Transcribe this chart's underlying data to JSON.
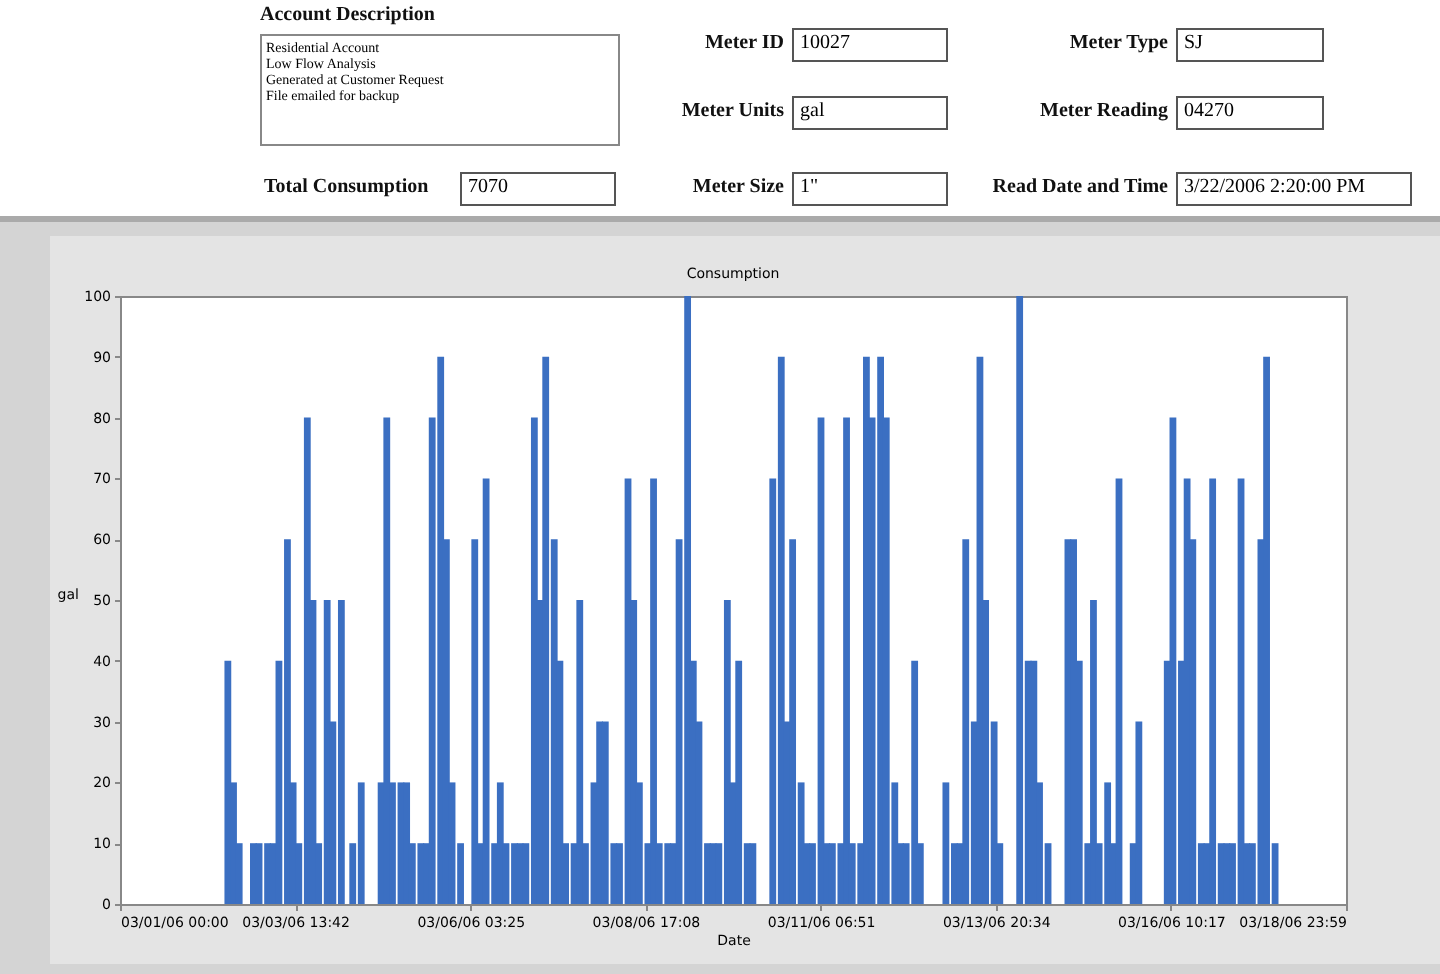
{
  "chart_data": [
    {
      "type": "other",
      "annotations": [
        "Account Description",
        "Residential Account",
        "Low Flow Analysis",
        "Generated at Customer Request",
        "File emailed for backup",
        "Total Consumption",
        "7070",
        "Meter ID",
        "10027",
        "Meter Units",
        "gal",
        "Meter Size",
        "1\"",
        "Meter Type",
        "SJ",
        "Meter Reading",
        "04270",
        "Read Date and Time",
        "3/22/2006 2:20:00 PM"
      ]
    },
    {
      "type": "bar",
      "title": "Consumption",
      "xlabel": "Date",
      "ylabel": "gal",
      "color": "#3b6fc2",
      "x": [
        "2006-03-02T14:00",
        "2006-03-02T16:00",
        "2006-03-02T18:00",
        "2006-03-02T21:00",
        "2006-03-02T23:00",
        "2006-03-03T01:00",
        "2006-03-03T04:00",
        "2006-03-03T06:00",
        "2006-03-03T08:00",
        "2006-03-03T11:00",
        "2006-03-03T13:00",
        "2006-03-03T15:00",
        "2006-03-03T18:00",
        "2006-03-03T20:00",
        "2006-03-03T22:00",
        "2006-03-04T01:00",
        "2006-03-04T03:00",
        "2006-03-04T06:00",
        "2006-03-04T08:00",
        "2006-03-04T10:00",
        "2006-03-04T13:00",
        "2006-03-04T15:00",
        "2006-03-04T17:00",
        "2006-03-04T20:00",
        "2006-03-04T22:00",
        "2006-03-05T00:00",
        "2006-03-05T03:00",
        "2006-03-05T05:00",
        "2006-03-05T07:00",
        "2006-03-05T10:00",
        "2006-03-05T12:00",
        "2006-03-05T14:00",
        "2006-03-05T17:00",
        "2006-03-05T19:00",
        "2006-03-05T21:00",
        "2006-03-06T00:00",
        "2006-03-06T02:00",
        "2006-03-06T05:00",
        "2006-03-06T07:00",
        "2006-03-06T09:00",
        "2006-03-06T12:00",
        "2006-03-06T14:00",
        "2006-03-06T16:00",
        "2006-03-06T19:00",
        "2006-03-06T21:00",
        "2006-03-06T23:00",
        "2006-03-07T02:00",
        "2006-03-07T04:00",
        "2006-03-07T06:00",
        "2006-03-07T09:00",
        "2006-03-07T11:00",
        "2006-03-07T13:00",
        "2006-03-07T16:00",
        "2006-03-07T18:00",
        "2006-03-07T20:00",
        "2006-03-07T23:00",
        "2006-03-08T01:00",
        "2006-03-08T03:00",
        "2006-03-08T06:00",
        "2006-03-08T08:00",
        "2006-03-08T11:00",
        "2006-03-08T13:00",
        "2006-03-08T15:00",
        "2006-03-08T18:00",
        "2006-03-08T20:00",
        "2006-03-08T22:00",
        "2006-03-09T01:00",
        "2006-03-09T03:00",
        "2006-03-09T05:00",
        "2006-03-09T08:00",
        "2006-03-09T10:00",
        "2006-03-09T12:00",
        "2006-03-09T15:00",
        "2006-03-09T17:00",
        "2006-03-09T19:00",
        "2006-03-09T22:00",
        "2006-03-10T00:00",
        "2006-03-10T02:00",
        "2006-03-10T05:00",
        "2006-03-10T07:00",
        "2006-03-10T10:00",
        "2006-03-10T12:00",
        "2006-03-10T14:00",
        "2006-03-10T17:00",
        "2006-03-10T19:00",
        "2006-03-10T21:00",
        "2006-03-11T00:00",
        "2006-03-11T02:00",
        "2006-03-11T04:00",
        "2006-03-11T07:00",
        "2006-03-11T09:00",
        "2006-03-11T11:00",
        "2006-03-11T14:00",
        "2006-03-11T16:00",
        "2006-03-11T18:00",
        "2006-03-11T21:00",
        "2006-03-11T23:00",
        "2006-03-12T01:00",
        "2006-03-12T04:00",
        "2006-03-12T06:00",
        "2006-03-12T09:00",
        "2006-03-12T11:00",
        "2006-03-12T13:00",
        "2006-03-12T16:00",
        "2006-03-12T18:00",
        "2006-03-12T20:00",
        "2006-03-12T23:00",
        "2006-03-13T01:00",
        "2006-03-13T03:00",
        "2006-03-13T06:00",
        "2006-03-13T08:00",
        "2006-03-13T10:00",
        "2006-03-13T13:00",
        "2006-03-13T15:00",
        "2006-03-13T17:00",
        "2006-03-13T20:00",
        "2006-03-13T22:00",
        "2006-03-14T00:00",
        "2006-03-14T03:00",
        "2006-03-14T05:00",
        "2006-03-14T08:00",
        "2006-03-14T10:00",
        "2006-03-14T12:00",
        "2006-03-14T15:00",
        "2006-03-14T17:00",
        "2006-03-14T19:00",
        "2006-03-14T22:00",
        "2006-03-15T00:00",
        "2006-03-15T02:00",
        "2006-03-15T05:00",
        "2006-03-15T07:00",
        "2006-03-15T09:00",
        "2006-03-15T12:00",
        "2006-03-15T14:00",
        "2006-03-15T16:00",
        "2006-03-15T19:00",
        "2006-03-15T21:00",
        "2006-03-15T23:00",
        "2006-03-16T02:00",
        "2006-03-16T04:00",
        "2006-03-16T07:00",
        "2006-03-16T09:00",
        "2006-03-16T11:00",
        "2006-03-16T14:00",
        "2006-03-16T16:00",
        "2006-03-16T18:00",
        "2006-03-16T21:00",
        "2006-03-16T23:00",
        "2006-03-17T01:00",
        "2006-03-17T04:00",
        "2006-03-17T06:00",
        "2006-03-17T08:00",
        "2006-03-17T11:00",
        "2006-03-17T13:00",
        "2006-03-17T15:00",
        "2006-03-17T18:00",
        "2006-03-17T20:00",
        "2006-03-17T23:00"
      ],
      "values": [
        40,
        20,
        10,
        null,
        10,
        10,
        10,
        10,
        40,
        60,
        20,
        10,
        80,
        50,
        10,
        50,
        30,
        50,
        null,
        10,
        20,
        null,
        null,
        20,
        80,
        20,
        20,
        20,
        10,
        10,
        10,
        80,
        90,
        60,
        20,
        10,
        null,
        60,
        10,
        70,
        10,
        20,
        10,
        10,
        10,
        10,
        80,
        50,
        90,
        60,
        40,
        10,
        10,
        50,
        10,
        20,
        30,
        30,
        10,
        10,
        70,
        50,
        20,
        10,
        70,
        10,
        10,
        10,
        60,
        100,
        40,
        30,
        10,
        10,
        10,
        50,
        20,
        40,
        10,
        10,
        null,
        null,
        70,
        90,
        30,
        60,
        20,
        10,
        10,
        80,
        10,
        10,
        10,
        80,
        10,
        10,
        90,
        80,
        90,
        80,
        20,
        10,
        10,
        40,
        10,
        null,
        null,
        null,
        20,
        10,
        10,
        60,
        30,
        90,
        50,
        30,
        10,
        null,
        null,
        100,
        40,
        40,
        20,
        10,
        null,
        null,
        60,
        60,
        40,
        10,
        50,
        10,
        20,
        10,
        70,
        null,
        10,
        30,
        null,
        null,
        null,
        40,
        80,
        40,
        70,
        60,
        10,
        10,
        70,
        10,
        10,
        10,
        70,
        10,
        10,
        60,
        90,
        10
      ],
      "xlim": [
        "2006-03-01T00:00",
        "2006-03-18T23:59"
      ],
      "xticks": [
        {
          "value": "2006-03-01T00:00",
          "label": "03/01/06 00:00"
        },
        {
          "value": "2006-03-03T13:42",
          "label": "03/03/06 13:42"
        },
        {
          "value": "2006-03-06T03:25",
          "label": "03/06/06 03:25"
        },
        {
          "value": "2006-03-08T17:08",
          "label": "03/08/06 17:08"
        },
        {
          "value": "2006-03-11T06:51",
          "label": "03/11/06 06:51"
        },
        {
          "value": "2006-03-13T20:34",
          "label": "03/13/06 20:34"
        },
        {
          "value": "2006-03-16T10:17",
          "label": "03/16/06 10:17"
        },
        {
          "value": "2006-03-18T23:59",
          "label": "03/18/06 23:59"
        }
      ],
      "ylim": [
        0,
        100
      ],
      "yticks": [
        0,
        10,
        20,
        30,
        40,
        50,
        60,
        70,
        80,
        90,
        100
      ]
    }
  ]
}
